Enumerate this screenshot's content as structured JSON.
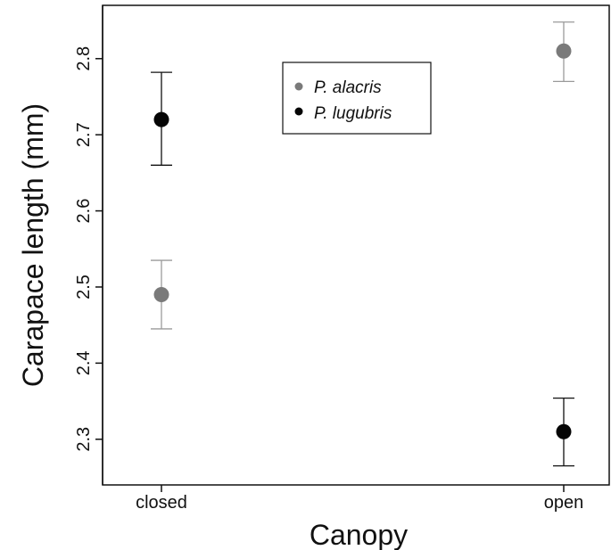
{
  "chart_data": {
    "type": "scatter",
    "categories": [
      "closed",
      "open"
    ],
    "xlabel": "Canopy",
    "ylabel": "Carapace length (mm)",
    "ylim": [
      2.24,
      2.87
    ],
    "yticks": [
      "2.3",
      "2.4",
      "2.5",
      "2.6",
      "2.7",
      "2.8"
    ],
    "series": [
      {
        "name": "P. alacris",
        "color": "#7a7a7a",
        "values": [
          2.49,
          2.81
        ],
        "lower": [
          2.445,
          2.77
        ],
        "upper": [
          2.535,
          2.848
        ]
      },
      {
        "name": "P. lugubris",
        "color": "#050505",
        "values": [
          2.72,
          2.31
        ],
        "lower": [
          2.66,
          2.265
        ],
        "upper": [
          2.782,
          2.354
        ]
      }
    ],
    "error_bars": true,
    "grid": false,
    "legend_position": "top-center"
  }
}
